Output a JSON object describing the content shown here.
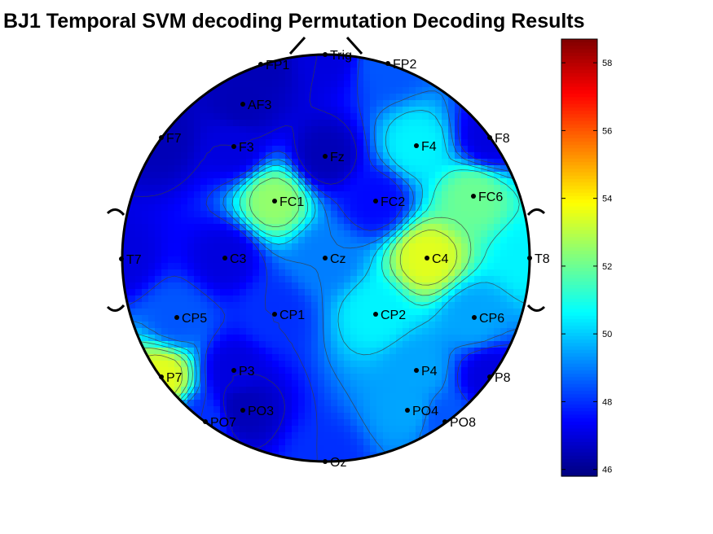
{
  "title": "BJ1 Temporal SVM decoding Permutation Decoding Results",
  "chart_data": {
    "type": "heatmap",
    "subtype": "topographic scalp map",
    "title": "BJ1 Temporal SVM decoding Permutation Decoding Results",
    "colormap": "jet",
    "colorbar": {
      "min": 45.8,
      "max": 58.7,
      "ticks": [
        46,
        48,
        50,
        52,
        54,
        56,
        58
      ],
      "placement": "right"
    },
    "contours": true,
    "electrodes": [
      {
        "label": "Trig",
        "value": 47.0
      },
      {
        "label": "FP1",
        "value": 46.5
      },
      {
        "label": "FP2",
        "value": 48.5
      },
      {
        "label": "AF3",
        "value": 46.5
      },
      {
        "label": "F7",
        "value": 46.5
      },
      {
        "label": "F3",
        "value": 47.0
      },
      {
        "label": "Fz",
        "value": 46.5
      },
      {
        "label": "F4",
        "value": 50.5
      },
      {
        "label": "F8",
        "value": 47.0
      },
      {
        "label": "FC1",
        "value": 52.5
      },
      {
        "label": "FC2",
        "value": 47.5
      },
      {
        "label": "FC6",
        "value": 52.0
      },
      {
        "label": "T7",
        "value": 47.0
      },
      {
        "label": "C3",
        "value": 47.0
      },
      {
        "label": "Cz",
        "value": 49.0
      },
      {
        "label": "C4",
        "value": 53.5
      },
      {
        "label": "T8",
        "value": 50.5
      },
      {
        "label": "CP5",
        "value": 48.5
      },
      {
        "label": "CP1",
        "value": 48.0
      },
      {
        "label": "CP2",
        "value": 50.5
      },
      {
        "label": "CP6",
        "value": 49.5
      },
      {
        "label": "P7",
        "value": 53.5
      },
      {
        "label": "P3",
        "value": 47.0
      },
      {
        "label": "P4",
        "value": 49.5
      },
      {
        "label": "P8",
        "value": 47.0
      },
      {
        "label": "PO7",
        "value": 48.0
      },
      {
        "label": "PO3",
        "value": 46.5
      },
      {
        "label": "PO4",
        "value": 49.5
      },
      {
        "label": "PO8",
        "value": 48.5
      },
      {
        "label": "Oz",
        "value": 48.0
      }
    ]
  }
}
